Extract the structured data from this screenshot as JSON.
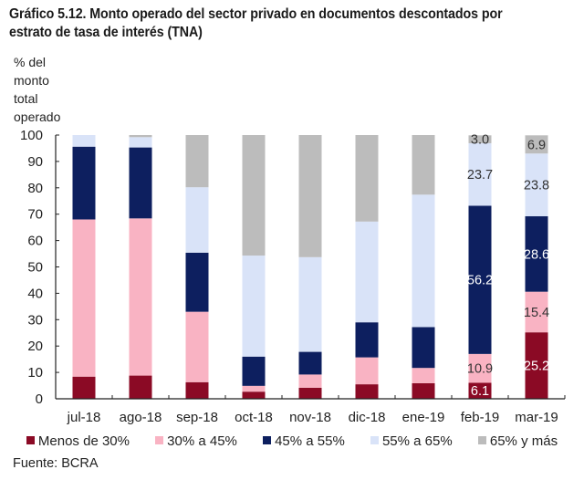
{
  "chart_data": {
    "type": "bar",
    "stacked": true,
    "title": "Gráfico 5.12. Monto operado del sector privado en documentos descontados por estrato de tasa de interés (TNA)",
    "ylabel_lines": [
      "% del",
      "monto",
      "total",
      "operado"
    ],
    "xlabel": "",
    "ylim": [
      0,
      100
    ],
    "yticks": [
      0,
      10,
      20,
      30,
      40,
      50,
      60,
      70,
      80,
      90,
      100
    ],
    "grid": false,
    "legend_position": "bottom",
    "categories": [
      "jul-18",
      "ago-18",
      "sep-18",
      "oct-18",
      "nov-18",
      "dic-18",
      "ene-19",
      "feb-19",
      "mar-19"
    ],
    "series": [
      {
        "name": "Menos de 30%",
        "color": "#8b0a25",
        "label_color": "#ffffff",
        "values": [
          8.4,
          8.8,
          6.3,
          2.7,
          4.2,
          5.5,
          5.9,
          6.1,
          25.2
        ]
      },
      {
        "name": "30% a 45%",
        "color": "#f9b3c3",
        "label_color": "#333333",
        "values": [
          59.6,
          59.6,
          26.7,
          2.2,
          5.0,
          10.2,
          5.8,
          10.9,
          15.4
        ]
      },
      {
        "name": "45% a 55%",
        "color": "#0d1f5f",
        "label_color": "#ffffff",
        "values": [
          27.6,
          26.9,
          22.4,
          11.1,
          8.6,
          13.3,
          15.5,
          56.2,
          28.6
        ]
      },
      {
        "name": "55% a 65%",
        "color": "#d9e3f8",
        "label_color": "#333333",
        "values": [
          4.4,
          3.9,
          24.8,
          38.3,
          35.9,
          38.2,
          50.2,
          23.7,
          23.8
        ]
      },
      {
        "name": "65% y más",
        "color": "#bcbcbc",
        "label_color": "#333333",
        "values": [
          0.0,
          0.8,
          19.8,
          45.7,
          46.3,
          32.8,
          22.6,
          3.0,
          6.9
        ]
      }
    ],
    "data_labels": {
      "feb-19": [
        "6.1",
        "10.9",
        "56.2",
        "23.7",
        "3.0"
      ],
      "mar-19": [
        "25.2",
        "15.4",
        "28.6",
        "23.8",
        "6.9"
      ]
    },
    "source": "Fuente: BCRA"
  }
}
